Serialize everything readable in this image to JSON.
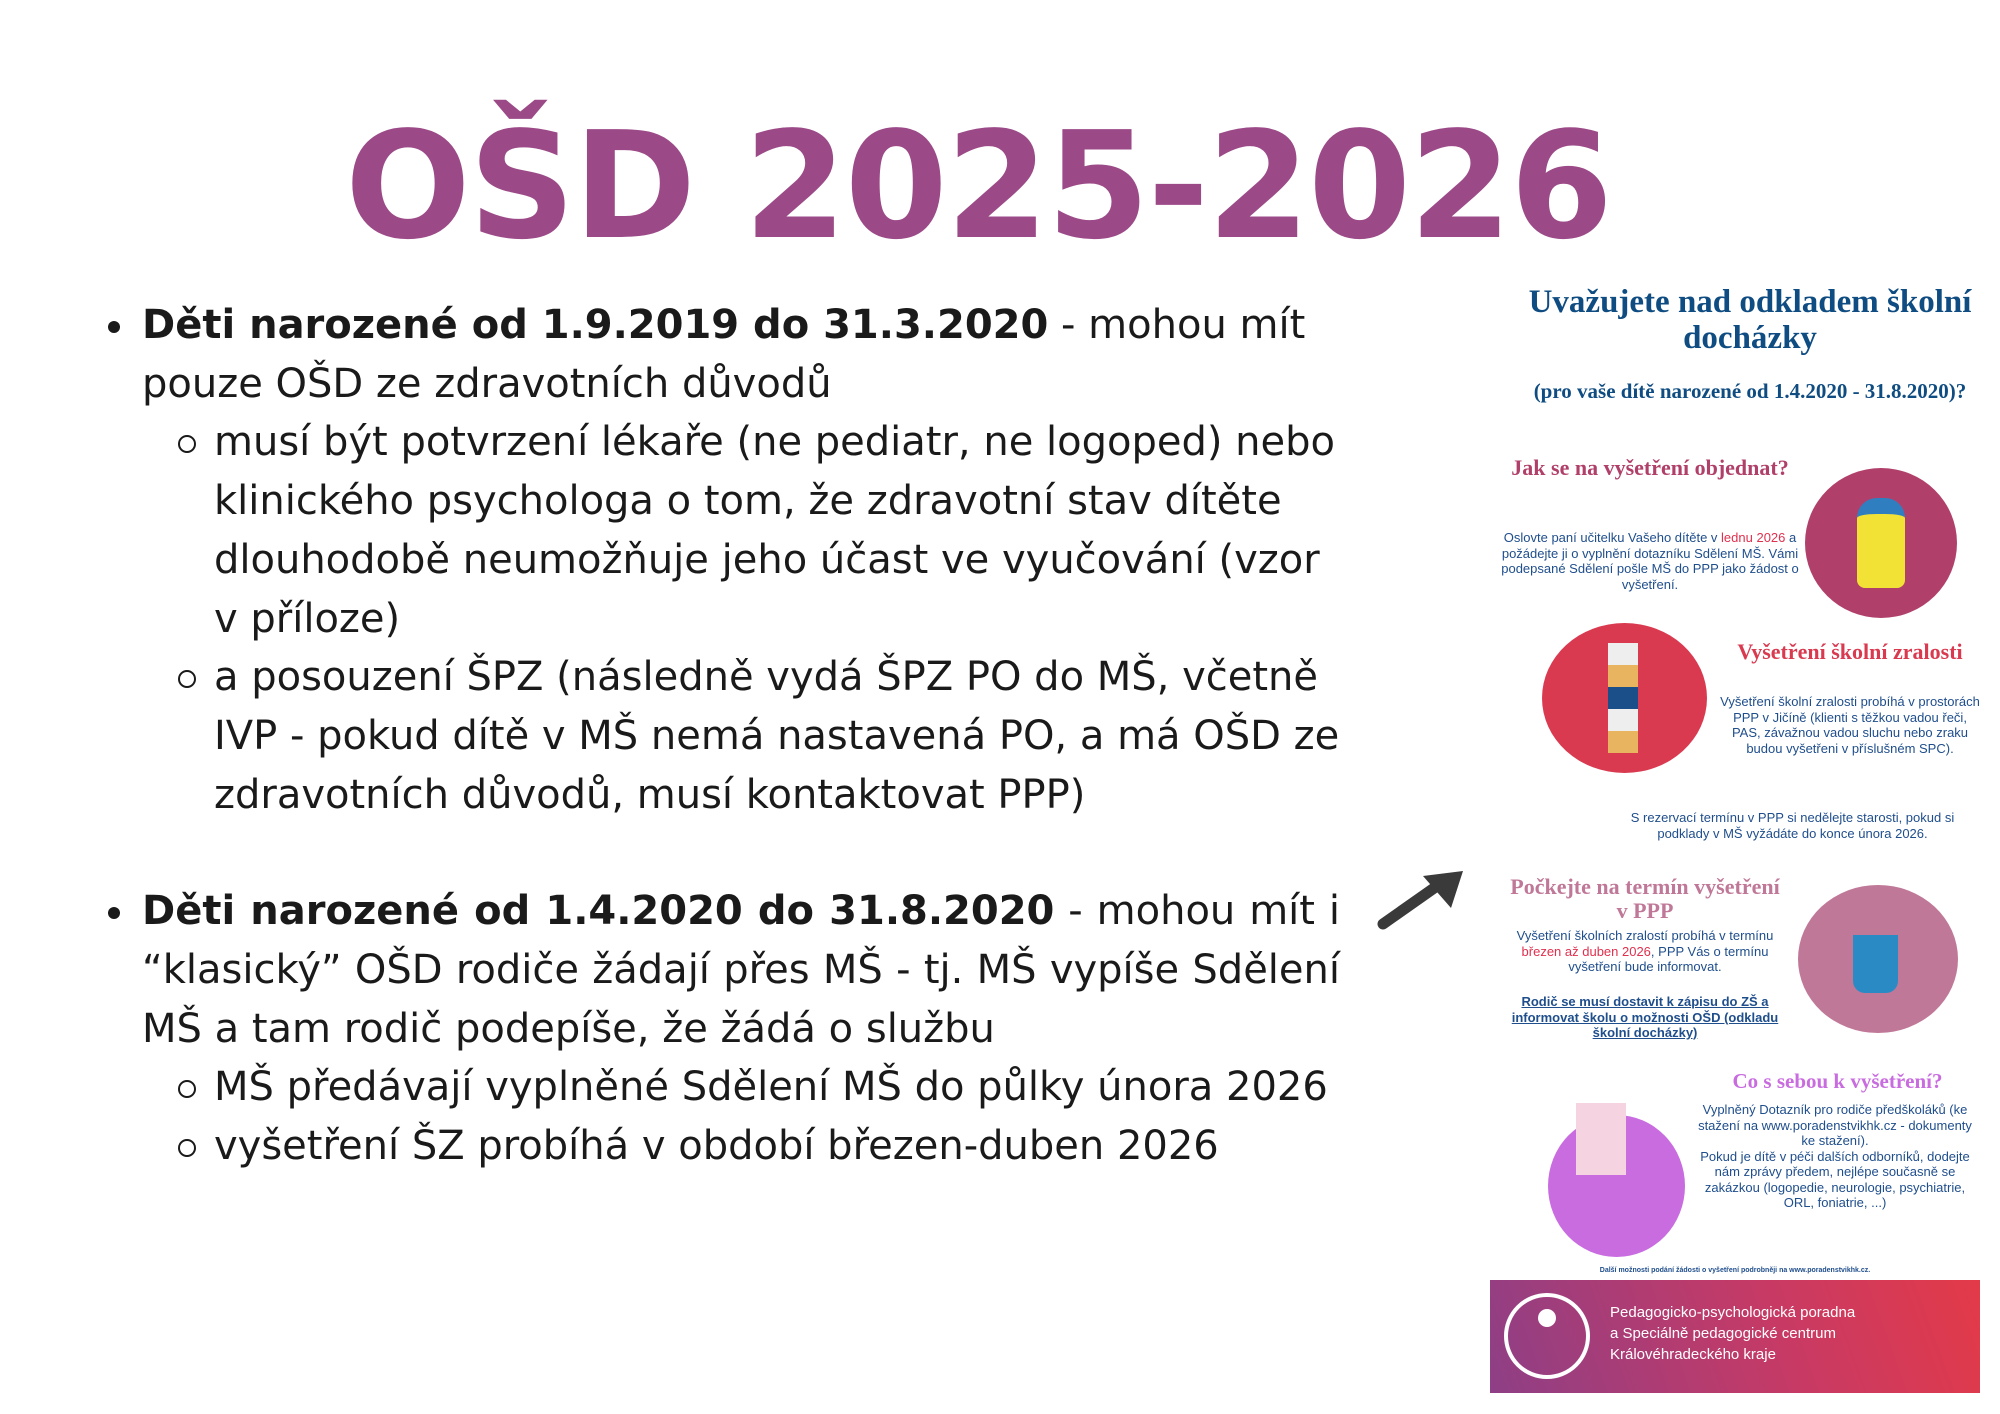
{
  "title": "OŠD 2025-2026",
  "bullets": [
    {
      "bold": "Děti narozené od 1.9.2019  do 31.3.2020",
      "rest": " - mohou mít pouze OŠD ze zdravotních důvodů",
      "sub": [
        "musí být potvrzení lékaře (ne pediatr, ne logoped) nebo klinického psychologa o tom, že zdravotní stav dítěte dlouhodobě neumožňuje jeho účast ve vyučování (vzor v příloze)",
        "a posouzení ŠPZ (následně vydá ŠPZ PO do MŠ, včetně IVP - pokud dítě v MŠ nemá nastavená PO, a má OŠD ze zdravotních důvodů, musí kontaktovat PPP)"
      ]
    },
    {
      "bold": "Děti narozené od 1.4.2020 do 31.8.2020",
      "rest": " - mohou mít i “klasický” OŠD rodiče žádají přes MŠ - tj. MŠ vypíše Sdělení MŠ a tam rodič podepíše, že žádá o službu",
      "sub": [
        "MŠ předávají vyplněné Sdělení MŠ do  půlky února 2026",
        "vyšetření ŠZ probíhá  v období březen-duben 2026"
      ]
    }
  ],
  "poster": {
    "heading": "Uvažujete nad odkladem školní docházky",
    "subheading": "(pro vaše dítě narozené od 1.4.2020 - 31.8.2020)?",
    "s1": {
      "title": "Jak se na vyšetření objednat?",
      "t1": "Oslovte paní učitelku Vašeho dítěte v ",
      "hl": "lednu 2026",
      "t2": " a požádejte ji o vyplnění dotazníku Sdělení MŠ. Vámi podepsané Sdělení pošle MŠ do PPP jako žádost o vyšetření."
    },
    "s2": {
      "title": "Vyšetření školní zralosti",
      "body": "Vyšetření školní zralosti probíhá v prostorách PPP v Jičíně (klienti s těžkou vadou řeči, PAS, závažnou vadou sluchu nebo zraku budou vyšetřeni v příslušném SPC).",
      "note": "S rezervací termínu v PPP si nedělejte starosti, pokud si podklady v MŠ vyžádáte do konce února 2026."
    },
    "s3": {
      "title": "Počkejte na termín vyšetření v PPP",
      "t1": "Vyšetření školních zralostí probíhá v termínu ",
      "hl": "březen až duben 2026",
      "t2": ", PPP Vás o termínu vyšetření bude informovat.",
      "underlined": "Rodič se musí dostavit k zápisu do ZŠ  a informovat školu o možnosti OŠD (odkladu školní docházky)"
    },
    "s4": {
      "title": "Co s sebou k vyšetření?",
      "body1": "Vyplněný Dotazník pro rodiče předškoláků (ke stažení na www.poradenstvikhk.cz - dokumenty ke stažení).",
      "body2": "Pokud je dítě v péči dalších odborníků, dodejte nám zprávy předem, nejlépe současně se zakázkou (logopedie, neurologie, psychiatrie, ORL, foniatrie, ...)"
    },
    "footnote": "Další možnosti podání žádosti o vyšetření podrobněji na www.poradenstvikhk.cz.",
    "banner": [
      "Pedagogicko-psychologická poradna",
      "a Speciálně pedagogické centrum",
      "Královéhradeckého kraje"
    ]
  },
  "colors": {
    "title": "#9b4a87",
    "poster_blue": "#0f4c81",
    "s1": "#b0406a",
    "s2": "#d93a50",
    "s3": "#c07898",
    "s4": "#c86ce0"
  }
}
